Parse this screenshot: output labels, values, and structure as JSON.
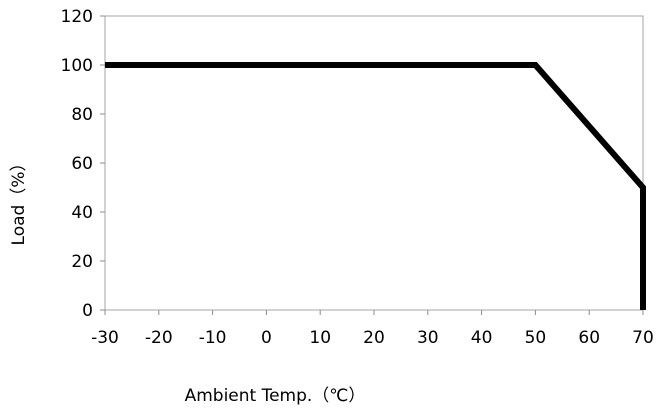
{
  "chart_data": {
    "type": "line",
    "title": "",
    "xlabel": "Ambient Temp.（℃）",
    "ylabel": "Load（%）",
    "xlim": [
      -30,
      70
    ],
    "ylim": [
      0,
      120
    ],
    "x_ticks": [
      -30,
      -20,
      -10,
      0,
      10,
      20,
      30,
      40,
      50,
      60,
      70
    ],
    "y_ticks": [
      0,
      20,
      40,
      60,
      80,
      100,
      120
    ],
    "grid": false,
    "series": [
      {
        "x": [
          -30,
          50,
          70,
          70
        ],
        "y": [
          100,
          100,
          50,
          0
        ]
      }
    ]
  },
  "colors": {
    "line": "#000000",
    "axes": "#a6a6a6",
    "ticks": "#8c8c8c"
  }
}
